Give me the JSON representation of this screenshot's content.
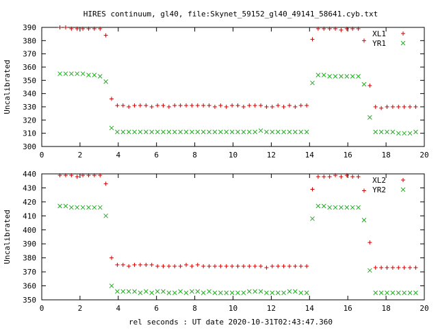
{
  "title": "HIRES continuum, gl40, file:Skynet_59152_gl40_49141_58641.cyb.txt",
  "xlabel": "rel seconds : UT date 2020-10-31T02:43:47.360",
  "colors": {
    "series1": "#cc0000",
    "series2": "#22aa22",
    "axes": "#000000"
  },
  "chart_data": [
    {
      "type": "scatter",
      "ylabel": "Uncalibrated",
      "xlim": [
        0,
        20
      ],
      "ylim": [
        300,
        390
      ],
      "xticks": [
        0,
        2,
        4,
        6,
        8,
        10,
        12,
        14,
        16,
        18,
        20
      ],
      "yticks": [
        300,
        310,
        320,
        330,
        340,
        350,
        360,
        370,
        380,
        390
      ],
      "legend_position": "top-right",
      "grid": false,
      "series": [
        {
          "name": "XL1",
          "marker": "plus",
          "x": [
            0.95,
            1.25,
            1.55,
            1.85,
            2.15,
            2.45,
            2.75,
            3.05,
            3.35,
            3.65,
            3.95,
            4.25,
            4.55,
            4.85,
            5.15,
            5.45,
            5.75,
            6.05,
            6.35,
            6.65,
            6.95,
            7.25,
            7.55,
            7.85,
            8.15,
            8.45,
            8.75,
            9.05,
            9.35,
            9.65,
            9.95,
            10.25,
            10.55,
            10.85,
            11.15,
            11.45,
            11.75,
            12.05,
            12.35,
            12.65,
            12.95,
            13.25,
            13.55,
            13.85,
            14.15,
            14.45,
            14.75,
            15.05,
            15.35,
            15.65,
            15.95,
            16.25,
            16.55,
            16.85,
            17.15,
            17.45,
            17.75,
            18.05,
            18.35,
            18.65,
            18.95,
            19.25,
            19.55
          ],
          "y": [
            390,
            390,
            389,
            389,
            389,
            389,
            389,
            389,
            384,
            336,
            331,
            331,
            330,
            331,
            331,
            331,
            330,
            331,
            331,
            330,
            331,
            331,
            331,
            331,
            331,
            331,
            331,
            330,
            331,
            330,
            331,
            331,
            330,
            331,
            331,
            331,
            330,
            330,
            331,
            330,
            331,
            330,
            331,
            331,
            381,
            389,
            389,
            389,
            389,
            388,
            389,
            389,
            389,
            380,
            346,
            330,
            329,
            330,
            330,
            330,
            330,
            330,
            330
          ]
        },
        {
          "name": "YR1",
          "marker": "cross",
          "x": [
            0.95,
            1.25,
            1.55,
            1.85,
            2.15,
            2.45,
            2.75,
            3.05,
            3.35,
            3.65,
            3.95,
            4.25,
            4.55,
            4.85,
            5.15,
            5.45,
            5.75,
            6.05,
            6.35,
            6.65,
            6.95,
            7.25,
            7.55,
            7.85,
            8.15,
            8.45,
            8.75,
            9.05,
            9.35,
            9.65,
            9.95,
            10.25,
            10.55,
            10.85,
            11.15,
            11.45,
            11.75,
            12.05,
            12.35,
            12.65,
            12.95,
            13.25,
            13.55,
            13.85,
            14.15,
            14.45,
            14.75,
            15.05,
            15.35,
            15.65,
            15.95,
            16.25,
            16.55,
            16.85,
            17.15,
            17.45,
            17.75,
            18.05,
            18.35,
            18.65,
            18.95,
            19.25,
            19.55
          ],
          "y": [
            355,
            355,
            355,
            355,
            355,
            354,
            354,
            353,
            349,
            314,
            311,
            311,
            311,
            311,
            311,
            311,
            311,
            311,
            311,
            311,
            311,
            311,
            311,
            311,
            311,
            311,
            311,
            311,
            311,
            311,
            311,
            311,
            311,
            311,
            311,
            312,
            311,
            311,
            311,
            311,
            311,
            311,
            311,
            311,
            348,
            354,
            354,
            353,
            353,
            353,
            353,
            353,
            353,
            347,
            322,
            311,
            311,
            311,
            311,
            310,
            310,
            310,
            311
          ]
        }
      ]
    },
    {
      "type": "scatter",
      "ylabel": "Uncalibrated",
      "xlim": [
        0,
        20
      ],
      "ylim": [
        350,
        440
      ],
      "xticks": [
        0,
        2,
        4,
        6,
        8,
        10,
        12,
        14,
        16,
        18,
        20
      ],
      "yticks": [
        350,
        360,
        370,
        380,
        390,
        400,
        410,
        420,
        430,
        440
      ],
      "legend_position": "top-right",
      "grid": false,
      "series": [
        {
          "name": "XL2",
          "marker": "plus",
          "x": [
            0.95,
            1.25,
            1.55,
            1.85,
            2.15,
            2.45,
            2.75,
            3.05,
            3.35,
            3.65,
            3.95,
            4.25,
            4.55,
            4.85,
            5.15,
            5.45,
            5.75,
            6.05,
            6.35,
            6.65,
            6.95,
            7.25,
            7.55,
            7.85,
            8.15,
            8.45,
            8.75,
            9.05,
            9.35,
            9.65,
            9.95,
            10.25,
            10.55,
            10.85,
            11.15,
            11.45,
            11.75,
            12.05,
            12.35,
            12.65,
            12.95,
            13.25,
            13.55,
            13.85,
            14.15,
            14.45,
            14.75,
            15.05,
            15.35,
            15.65,
            15.95,
            16.25,
            16.55,
            16.85,
            17.15,
            17.45,
            17.75,
            18.05,
            18.35,
            18.65,
            18.95,
            19.25,
            19.55
          ],
          "y": [
            439,
            439,
            439,
            438,
            439,
            439,
            439,
            439,
            433,
            380,
            375,
            375,
            374,
            375,
            375,
            375,
            375,
            374,
            374,
            374,
            374,
            374,
            375,
            374,
            375,
            374,
            374,
            374,
            374,
            374,
            374,
            374,
            374,
            374,
            374,
            374,
            373,
            374,
            374,
            374,
            374,
            374,
            374,
            374,
            429,
            438,
            438,
            438,
            439,
            438,
            439,
            438,
            438,
            428,
            391,
            373,
            373,
            373,
            373,
            373,
            373,
            373,
            373
          ]
        },
        {
          "name": "YR2",
          "marker": "cross",
          "x": [
            0.95,
            1.25,
            1.55,
            1.85,
            2.15,
            2.45,
            2.75,
            3.05,
            3.35,
            3.65,
            3.95,
            4.25,
            4.55,
            4.85,
            5.15,
            5.45,
            5.75,
            6.05,
            6.35,
            6.65,
            6.95,
            7.25,
            7.55,
            7.85,
            8.15,
            8.45,
            8.75,
            9.05,
            9.35,
            9.65,
            9.95,
            10.25,
            10.55,
            10.85,
            11.15,
            11.45,
            11.75,
            12.05,
            12.35,
            12.65,
            12.95,
            13.25,
            13.55,
            13.85,
            14.15,
            14.45,
            14.75,
            15.05,
            15.35,
            15.65,
            15.95,
            16.25,
            16.55,
            16.85,
            17.15,
            17.45,
            17.75,
            18.05,
            18.35,
            18.65,
            18.95,
            19.25,
            19.55
          ],
          "y": [
            417,
            417,
            416,
            416,
            416,
            416,
            416,
            416,
            410,
            360,
            356,
            356,
            356,
            356,
            355,
            356,
            355,
            356,
            356,
            355,
            355,
            356,
            355,
            356,
            356,
            355,
            356,
            355,
            355,
            355,
            355,
            355,
            355,
            356,
            356,
            356,
            355,
            355,
            355,
            355,
            356,
            356,
            355,
            355,
            408,
            417,
            417,
            416,
            416,
            416,
            416,
            416,
            416,
            407,
            371,
            355,
            355,
            355,
            355,
            355,
            355,
            355,
            355
          ]
        }
      ]
    }
  ]
}
